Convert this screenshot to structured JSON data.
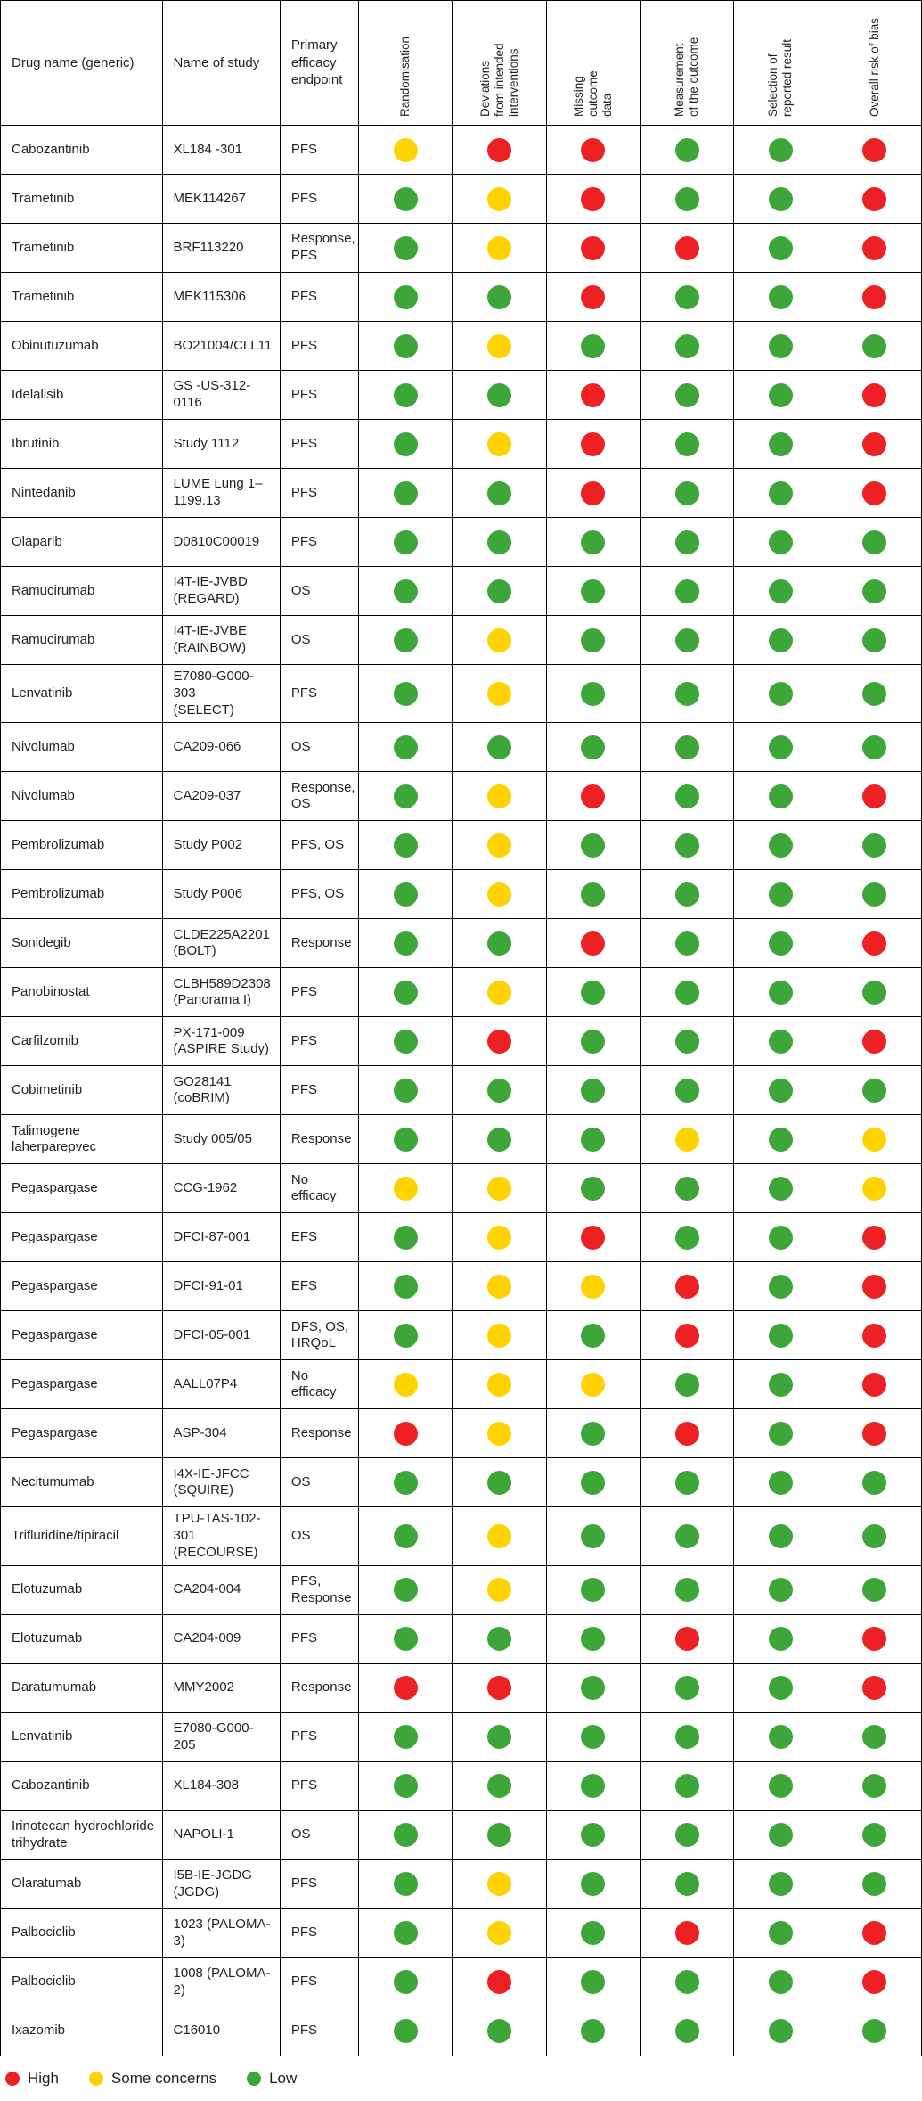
{
  "chart_data": {
    "type": "table",
    "columns": [
      "Drug name (generic)",
      "Name of study",
      "Primary efficacy endpoint",
      "Randomisation",
      "Deviations\nfrom intended\ninterventions",
      "Missing\noutcome\ndata",
      "Measurement\nof the outcome",
      "Selection of\nreported result",
      "Overall risk of bias"
    ],
    "colors": {
      "high": "#ed2124",
      "some": "#ffd300",
      "low": "#3da639"
    },
    "legend": [
      {
        "label": "High",
        "level": "high"
      },
      {
        "label": "Some concerns",
        "level": "some"
      },
      {
        "label": "Low",
        "level": "low"
      }
    ],
    "rows": [
      {
        "drug": "Cabozantinib",
        "study": "XL184 -301",
        "endpoint": "PFS",
        "ratings": [
          "some",
          "high",
          "high",
          "low",
          "low",
          "high"
        ]
      },
      {
        "drug": "Trametinib",
        "study": "MEK114267",
        "endpoint": "PFS",
        "ratings": [
          "low",
          "some",
          "high",
          "low",
          "low",
          "high"
        ]
      },
      {
        "drug": "Trametinib",
        "study": "BRF113220",
        "endpoint": "Response, PFS",
        "ratings": [
          "low",
          "some",
          "high",
          "high",
          "low",
          "high"
        ]
      },
      {
        "drug": "Trametinib",
        "study": "MEK115306",
        "endpoint": "PFS",
        "ratings": [
          "low",
          "low",
          "high",
          "low",
          "low",
          "high"
        ]
      },
      {
        "drug": "Obinutuzumab",
        "study": "BO21004/CLL11",
        "endpoint": "PFS",
        "ratings": [
          "low",
          "some",
          "low",
          "low",
          "low",
          "low"
        ]
      },
      {
        "drug": "Idelalisib",
        "study": "GS -US-312-0116",
        "endpoint": "PFS",
        "ratings": [
          "low",
          "low",
          "high",
          "low",
          "low",
          "high"
        ]
      },
      {
        "drug": "Ibrutinib",
        "study": "Study 1112",
        "endpoint": "PFS",
        "ratings": [
          "low",
          "some",
          "high",
          "low",
          "low",
          "high"
        ]
      },
      {
        "drug": "Nintedanib",
        "study": "LUME Lung 1–\n1199.13",
        "endpoint": "PFS",
        "ratings": [
          "low",
          "low",
          "high",
          "low",
          "low",
          "high"
        ]
      },
      {
        "drug": "Olaparib",
        "study": "D0810C00019",
        "endpoint": "PFS",
        "ratings": [
          "low",
          "low",
          "low",
          "low",
          "low",
          "low"
        ]
      },
      {
        "drug": "Ramucirumab",
        "study": "I4T-IE-JVBD\n(REGARD)",
        "endpoint": "OS",
        "ratings": [
          "low",
          "low",
          "low",
          "low",
          "low",
          "low"
        ]
      },
      {
        "drug": "Ramucirumab",
        "study": "I4T-IE-JVBE\n(RAINBOW)",
        "endpoint": "OS",
        "ratings": [
          "low",
          "some",
          "low",
          "low",
          "low",
          "low"
        ]
      },
      {
        "drug": "Lenvatinib",
        "study": "E7080-G000-303\n(SELECT)",
        "endpoint": "PFS",
        "ratings": [
          "low",
          "some",
          "low",
          "low",
          "low",
          "low"
        ]
      },
      {
        "drug": "Nivolumab",
        "study": "CA209-066",
        "endpoint": "OS",
        "ratings": [
          "low",
          "low",
          "low",
          "low",
          "low",
          "low"
        ]
      },
      {
        "drug": "Nivolumab",
        "study": "CA209-037",
        "endpoint": "Response, OS",
        "ratings": [
          "low",
          "some",
          "high",
          "low",
          "low",
          "high"
        ]
      },
      {
        "drug": "Pembrolizumab",
        "study": "Study P002",
        "endpoint": "PFS, OS",
        "ratings": [
          "low",
          "some",
          "low",
          "low",
          "low",
          "low"
        ]
      },
      {
        "drug": "Pembrolizumab",
        "study": "Study P006",
        "endpoint": "PFS, OS",
        "ratings": [
          "low",
          "some",
          "low",
          "low",
          "low",
          "low"
        ]
      },
      {
        "drug": "Sonidegib",
        "study": "CLDE225A2201\n(BOLT)",
        "endpoint": "Response",
        "ratings": [
          "low",
          "low",
          "high",
          "low",
          "low",
          "high"
        ]
      },
      {
        "drug": "Panobinostat",
        "study": "CLBH589D2308\n(Panorama I)",
        "endpoint": "PFS",
        "ratings": [
          "low",
          "some",
          "low",
          "low",
          "low",
          "low"
        ]
      },
      {
        "drug": "Carfilzomib",
        "study": "PX-171-009\n(ASPIRE Study)",
        "endpoint": "PFS",
        "ratings": [
          "low",
          "high",
          "low",
          "low",
          "low",
          "high"
        ]
      },
      {
        "drug": "Cobimetinib",
        "study": "GO28141\n(coBRIM)",
        "endpoint": "PFS",
        "ratings": [
          "low",
          "low",
          "low",
          "low",
          "low",
          "low"
        ]
      },
      {
        "drug": "Talimogene laherparepvec",
        "study": "Study 005/05",
        "endpoint": "Response",
        "ratings": [
          "low",
          "low",
          "low",
          "some",
          "low",
          "some"
        ]
      },
      {
        "drug": "Pegaspargase",
        "study": "CCG-1962",
        "endpoint": "No efficacy",
        "ratings": [
          "some",
          "some",
          "low",
          "low",
          "low",
          "some"
        ]
      },
      {
        "drug": "Pegaspargase",
        "study": "DFCI-87-001",
        "endpoint": "EFS",
        "ratings": [
          "low",
          "some",
          "high",
          "low",
          "low",
          "high"
        ]
      },
      {
        "drug": "Pegaspargase",
        "study": "DFCI-91-01",
        "endpoint": "EFS",
        "ratings": [
          "low",
          "some",
          "some",
          "high",
          "low",
          "high"
        ]
      },
      {
        "drug": "Pegaspargase",
        "study": "DFCI-05-001",
        "endpoint": "DFS, OS, HRQoL",
        "ratings": [
          "low",
          "some",
          "low",
          "high",
          "low",
          "high"
        ]
      },
      {
        "drug": "Pegaspargase",
        "study": "AALL07P4",
        "endpoint": "No efficacy",
        "ratings": [
          "some",
          "some",
          "some",
          "low",
          "low",
          "high"
        ]
      },
      {
        "drug": "Pegaspargase",
        "study": "ASP-304",
        "endpoint": "Response",
        "ratings": [
          "high",
          "some",
          "low",
          "high",
          "low",
          "high"
        ]
      },
      {
        "drug": "Necitumumab",
        "study": "I4X-IE-JFCC\n(SQUIRE)",
        "endpoint": "OS",
        "ratings": [
          "low",
          "low",
          "low",
          "low",
          "low",
          "low"
        ]
      },
      {
        "drug": "Trifluridine/tipiracil",
        "study": "TPU-TAS-102-301\n(RECOURSE)",
        "endpoint": "OS",
        "ratings": [
          "low",
          "some",
          "low",
          "low",
          "low",
          "low"
        ]
      },
      {
        "drug": "Elotuzumab",
        "study": "CA204-004",
        "endpoint": "PFS, Response",
        "ratings": [
          "low",
          "some",
          "low",
          "low",
          "low",
          "low"
        ]
      },
      {
        "drug": "Elotuzumab",
        "study": "CA204-009",
        "endpoint": "PFS",
        "ratings": [
          "low",
          "low",
          "low",
          "high",
          "low",
          "high"
        ]
      },
      {
        "drug": "Daratumumab",
        "study": "MMY2002",
        "endpoint": "Response",
        "ratings": [
          "high",
          "high",
          "low",
          "low",
          "low",
          "high"
        ]
      },
      {
        "drug": "Lenvatinib",
        "study": "E7080-G000-205",
        "endpoint": "PFS",
        "ratings": [
          "low",
          "low",
          "low",
          "low",
          "low",
          "low"
        ]
      },
      {
        "drug": "Cabozantinib",
        "study": "XL184-308",
        "endpoint": "PFS",
        "ratings": [
          "low",
          "low",
          "low",
          "low",
          "low",
          "low"
        ]
      },
      {
        "drug": "Irinotecan hydrochloride trihydrate",
        "study": "NAPOLI-1",
        "endpoint": "OS",
        "ratings": [
          "low",
          "low",
          "low",
          "low",
          "low",
          "low"
        ]
      },
      {
        "drug": "Olaratumab",
        "study": "I5B-IE-JGDG\n(JGDG)",
        "endpoint": "PFS",
        "ratings": [
          "low",
          "some",
          "low",
          "low",
          "low",
          "low"
        ]
      },
      {
        "drug": "Palbociclib",
        "study": "1023 (PALOMA-3)",
        "endpoint": "PFS",
        "ratings": [
          "low",
          "some",
          "low",
          "high",
          "low",
          "high"
        ]
      },
      {
        "drug": "Palbociclib",
        "study": "1008 (PALOMA-2)",
        "endpoint": "PFS",
        "ratings": [
          "low",
          "high",
          "low",
          "low",
          "low",
          "high"
        ]
      },
      {
        "drug": "Ixazomib",
        "study": "C16010",
        "endpoint": "PFS",
        "ratings": [
          "low",
          "low",
          "low",
          "low",
          "low",
          "low"
        ]
      }
    ]
  }
}
